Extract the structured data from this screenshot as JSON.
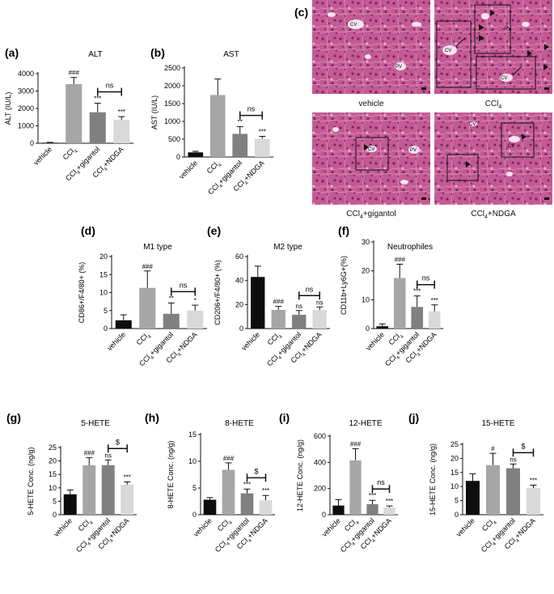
{
  "colors": {
    "vehicle": "#0d0d0d",
    "ccl4": "#a6a6a6",
    "gigantol": "#808080",
    "ndga": "#d9d9d9",
    "tissue": "#c2548f",
    "tissue_dark": "#8a2d6a",
    "tissue_light": "#e4a2c9"
  },
  "panel_c": {
    "letter": "(c)",
    "labels": [
      "vehicle",
      "CCl4",
      "CCl4+gigantol",
      "CCl4+NDGA"
    ],
    "marks": [
      "CV",
      "PV"
    ]
  },
  "chart_data": [
    {
      "id": "a",
      "letter": "(a)",
      "type": "bar",
      "title": "ALT",
      "ylabel": "ALT (IU/L)",
      "ylim": [
        0,
        4000
      ],
      "yticks": [
        0,
        1000,
        2000,
        3000,
        4000
      ],
      "categories": [
        "vehicle",
        "CCl4",
        "CCl4+gigantol",
        "CCl4+NDGA"
      ],
      "values": [
        30,
        3400,
        1780,
        1350
      ],
      "errors": [
        20,
        380,
        520,
        180
      ],
      "sig": [
        "",
        "###",
        "***",
        "***"
      ],
      "bracket": {
        "from": 2,
        "to": 3,
        "label": "ns"
      }
    },
    {
      "id": "b",
      "letter": "(b)",
      "type": "bar",
      "title": "AST",
      "ylabel": "AST (IU/L)",
      "ylim": [
        0,
        2500
      ],
      "yticks": [
        0,
        500,
        1000,
        1500,
        2000,
        2500
      ],
      "categories": [
        "vehicle",
        "CCl4",
        "CCl4+gigantol",
        "CCl4+NDGA"
      ],
      "values": [
        130,
        1740,
        650,
        510
      ],
      "errors": [
        30,
        450,
        200,
        70
      ],
      "sig": [
        "",
        "",
        "**",
        "***"
      ],
      "bracket": {
        "from": 2,
        "to": 3,
        "label": "ns"
      }
    },
    {
      "id": "d",
      "letter": "(d)",
      "type": "bar",
      "title": "M1 type",
      "ylabel": "CD86+/F4/80+ (%)",
      "ylim": [
        0,
        20
      ],
      "yticks": [
        0,
        5,
        10,
        15,
        20
      ],
      "categories": [
        "vehicle",
        "CCl4",
        "CCl4+gigantol",
        "CCl4+NDGA"
      ],
      "values": [
        2.3,
        11.3,
        4.1,
        5.0
      ],
      "errors": [
        1.5,
        4.7,
        3.0,
        1.5
      ],
      "sig": [
        "",
        "###",
        "**",
        "*"
      ],
      "bracket": {
        "from": 2,
        "to": 3,
        "label": "ns"
      }
    },
    {
      "id": "e",
      "letter": "(e)",
      "type": "bar",
      "title": "M2 type",
      "ylabel": "CD206+/F4/80+ (%)",
      "ylim": [
        0,
        60
      ],
      "yticks": [
        0,
        20,
        40,
        60
      ],
      "categories": [
        "vehicle",
        "CCl4",
        "CCl4+gigantol",
        "CCl4+NDGA"
      ],
      "values": [
        43,
        15.5,
        11.5,
        15.5
      ],
      "errors": [
        9,
        3,
        3.5,
        2.5
      ],
      "sig": [
        "",
        "###",
        "ns",
        "ns"
      ],
      "bracket": {
        "from": 2,
        "to": 3,
        "label": "ns"
      }
    },
    {
      "id": "f",
      "letter": "(f)",
      "type": "bar",
      "title": "Neutrophiles",
      "ylabel": "CD11b+Ly6G+(%)",
      "ylim": [
        0,
        30
      ],
      "yticks": [
        0,
        10,
        20,
        30
      ],
      "categories": [
        "vehicle",
        "CCl4",
        "CCl4+gigantol",
        "CCl4+NDGA"
      ],
      "values": [
        0.8,
        17.5,
        7.5,
        6.0
      ],
      "errors": [
        0.8,
        4.8,
        3.8,
        2.2
      ],
      "sig": [
        "",
        "###",
        "***",
        "***"
      ],
      "bracket": {
        "from": 2,
        "to": 3,
        "label": "ns"
      }
    },
    {
      "id": "g",
      "letter": "(g)",
      "type": "bar",
      "title": "5-HETE",
      "ylabel": "5-HETE Conc. (ng/g)",
      "ylim": [
        0,
        25
      ],
      "yticks": [
        0,
        5,
        10,
        15,
        20,
        25
      ],
      "categories": [
        "vehicle",
        "CCl4",
        "CCl4+gigantol",
        "CCl4+NDGA"
      ],
      "values": [
        7.6,
        18.4,
        18.4,
        11.2
      ],
      "errors": [
        1.6,
        2.8,
        2.0,
        1.0
      ],
      "sig": [
        "",
        "###",
        "ns",
        "***"
      ],
      "bracket": {
        "from": 2,
        "to": 3,
        "label": "$"
      }
    },
    {
      "id": "h",
      "letter": "(h)",
      "type": "bar",
      "title": "8-HETE",
      "ylabel": "8-HETE Conc. (ng/g)",
      "ylim": [
        0,
        15
      ],
      "yticks": [
        0,
        5,
        10,
        15
      ],
      "categories": [
        "vehicle",
        "CCl4",
        "CCl4+gigantol",
        "CCl4+NDGA"
      ],
      "values": [
        2.8,
        8.4,
        4.0,
        2.7
      ],
      "errors": [
        0.4,
        1.3,
        0.8,
        0.9
      ],
      "sig": [
        "",
        "###",
        "***",
        "***"
      ],
      "bracket": {
        "from": 2,
        "to": 3,
        "label": "$"
      }
    },
    {
      "id": "i",
      "letter": "(i)",
      "type": "bar",
      "title": "12-HETE",
      "ylabel": "12-HETE Conc. (ng/g)",
      "ylim": [
        0,
        600
      ],
      "yticks": [
        0,
        200,
        400,
        600
      ],
      "categories": [
        "vehicle",
        "CCl4",
        "CCl4+gigantol",
        "CCl4+NDGA"
      ],
      "values": [
        70,
        415,
        80,
        55
      ],
      "errors": [
        45,
        90,
        30,
        12
      ],
      "sig": [
        "",
        "###",
        "***",
        "***"
      ],
      "bracket": {
        "from": 2,
        "to": 3,
        "label": "ns"
      }
    },
    {
      "id": "j",
      "letter": "(j)",
      "type": "bar",
      "title": "15-HETE",
      "ylabel": "15-HETE Conc. (ng/g)",
      "ylim": [
        0,
        25
      ],
      "yticks": [
        0,
        5,
        10,
        15,
        20,
        25
      ],
      "categories": [
        "vehicle",
        "CCl4",
        "CCl4+gigantol",
        "CCl4+NDGA"
      ],
      "values": [
        12.0,
        17.6,
        16.5,
        9.5
      ],
      "errors": [
        2.5,
        4.2,
        1.5,
        1.0
      ],
      "sig": [
        "",
        "#",
        "ns",
        "***"
      ],
      "bracket": {
        "from": 2,
        "to": 3,
        "label": "$"
      }
    }
  ]
}
